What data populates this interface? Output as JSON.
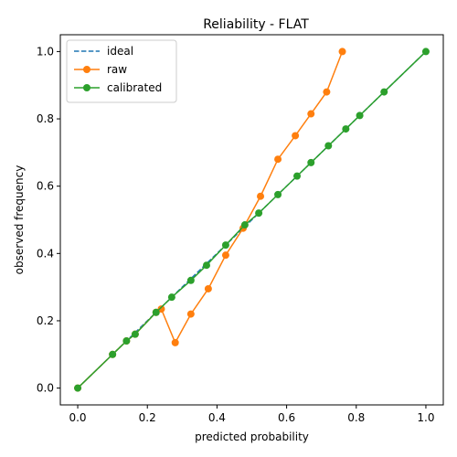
{
  "chart_data": {
    "type": "line",
    "title": "Reliability - FLAT",
    "xlabel": "predicted probability",
    "ylabel": "observed frequency",
    "xlim": [
      -0.05,
      1.05
    ],
    "ylim": [
      -0.05,
      1.05
    ],
    "xticks": [
      0.0,
      0.2,
      0.4,
      0.6,
      0.8,
      1.0
    ],
    "yticks": [
      0.0,
      0.2,
      0.4,
      0.6,
      0.8,
      1.0
    ],
    "xtick_labels": [
      "0.0",
      "0.2",
      "0.4",
      "0.6",
      "0.8",
      "1.0"
    ],
    "ytick_labels": [
      "0.0",
      "0.2",
      "0.4",
      "0.6",
      "0.8",
      "1.0"
    ],
    "grid": false,
    "legend_position": "top-left",
    "series": [
      {
        "name": "ideal",
        "style": "dashed",
        "color": "#1f77b4",
        "markers": false,
        "x": [
          0.0,
          1.0
        ],
        "y": [
          0.0,
          1.0
        ]
      },
      {
        "name": "raw",
        "style": "solid",
        "color": "#ff7f0e",
        "markers": true,
        "x": [
          0.0,
          0.1,
          0.14,
          0.165,
          0.225,
          0.24,
          0.28,
          0.325,
          0.375,
          0.425,
          0.475,
          0.525,
          0.575,
          0.625,
          0.67,
          0.715,
          0.76
        ],
        "y": [
          0.0,
          0.1,
          0.14,
          0.16,
          0.225,
          0.235,
          0.135,
          0.22,
          0.295,
          0.395,
          0.475,
          0.57,
          0.68,
          0.75,
          0.815,
          0.88,
          1.0
        ]
      },
      {
        "name": "calibrated",
        "style": "solid",
        "color": "#2ca02c",
        "markers": true,
        "x": [
          0.0,
          0.1,
          0.14,
          0.165,
          0.225,
          0.27,
          0.325,
          0.37,
          0.425,
          0.48,
          0.52,
          0.575,
          0.63,
          0.67,
          0.72,
          0.77,
          0.81,
          0.88,
          1.0
        ],
        "y": [
          0.0,
          0.1,
          0.14,
          0.16,
          0.225,
          0.27,
          0.32,
          0.365,
          0.425,
          0.485,
          0.52,
          0.575,
          0.63,
          0.67,
          0.72,
          0.77,
          0.81,
          0.88,
          1.0
        ]
      }
    ]
  }
}
